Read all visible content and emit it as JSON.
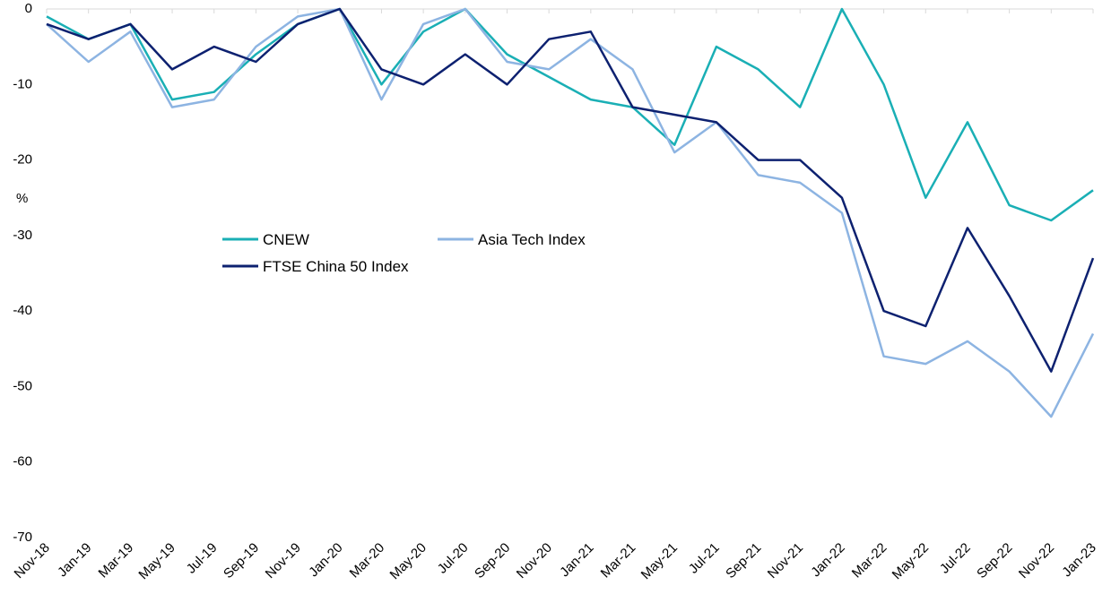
{
  "chart_data": {
    "type": "line",
    "title": "",
    "xlabel": "",
    "ylabel": "%",
    "ylim": [
      -70,
      0
    ],
    "yticks": [
      "0",
      "-10",
      "-20",
      "-30",
      "-40",
      "-50",
      "-60",
      "-70"
    ],
    "xticks": [
      "Nov-18",
      "Jan-19",
      "Mar-19",
      "May-19",
      "Jul-19",
      "Sep-19",
      "Nov-19",
      "Jan-20",
      "Mar-20",
      "May-20",
      "Jul-20",
      "Sep-20",
      "Nov-20",
      "Jan-21",
      "Mar-21",
      "May-21",
      "Jul-21",
      "Sep-21",
      "Nov-21",
      "Jan-22",
      "Mar-22",
      "May-22",
      "Jul-22",
      "Sep-22",
      "Nov-22",
      "Jan-23"
    ],
    "legend": {
      "placement": "center-left"
    },
    "grid": false,
    "x": [
      "Nov-18",
      "Jan-19",
      "Mar-19",
      "May-19",
      "Jul-19",
      "Sep-19",
      "Nov-19",
      "Jan-20",
      "Mar-20",
      "May-20",
      "Jul-20",
      "Sep-20",
      "Nov-20",
      "Jan-21",
      "Mar-21",
      "May-21",
      "Jul-21",
      "Sep-21",
      "Nov-21",
      "Jan-22",
      "Mar-22",
      "May-22",
      "Jul-22",
      "Sep-22",
      "Nov-22",
      "Jan-23"
    ],
    "series": [
      {
        "name": "CNEW",
        "color": "#1AAFB5",
        "values": [
          -1,
          -4,
          -2,
          -12,
          -11,
          -6,
          -2,
          0,
          -10,
          -3,
          0,
          -6,
          -9,
          -12,
          -13,
          -18,
          -5,
          -8,
          -13,
          0,
          -10,
          -25,
          -15,
          -26,
          -28,
          -24
        ]
      },
      {
        "name": "Asia Tech Index",
        "color": "#8DB4E2",
        "values": [
          -2,
          -7,
          -3,
          -13,
          -12,
          -5,
          -1,
          0,
          -12,
          -2,
          0,
          -7,
          -8,
          -4,
          -8,
          -19,
          -15,
          -22,
          -23,
          -27,
          -46,
          -47,
          -44,
          -48,
          -54,
          -43
        ]
      },
      {
        "name": "FTSE China 50 Index",
        "color": "#0D2170",
        "values": [
          -2,
          -4,
          -2,
          -8,
          -5,
          -7,
          -2,
          0,
          -8,
          -10,
          -6,
          -10,
          -4,
          -3,
          -13,
          -14,
          -15,
          -20,
          -20,
          -25,
          -40,
          -42,
          -29,
          -38,
          -48,
          -33
        ]
      }
    ]
  }
}
